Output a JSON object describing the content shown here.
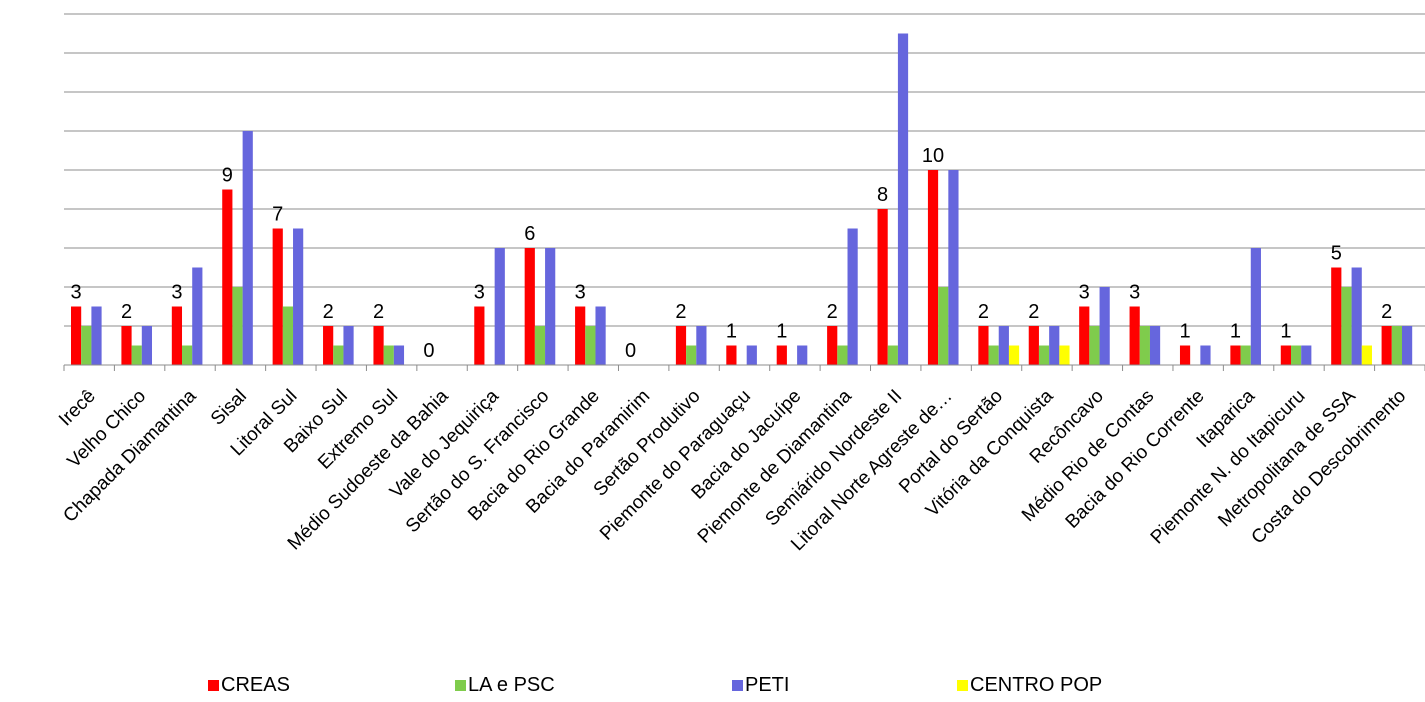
{
  "chart_data": {
    "type": "bar",
    "categories": [
      "Irecê",
      "Velho Chico",
      "Chapada Diamantina",
      "Sisal",
      "Litoral Sul",
      "Baixo Sul",
      "Extremo Sul",
      "Médio Sudoeste da Bahia",
      "Vale do Jequiriça",
      "Sertão do S. Francisco",
      "Bacia do Rio Grande",
      "Bacia do Paramirim",
      "Sertão Produtivo",
      "Piemonte do Paraguaçu",
      "Bacia do Jacuípe",
      "Piemonte de Diamantina",
      "Semiárido Nordeste II",
      "Litoral Norte Agreste de…",
      "Portal do Sertão",
      "Vitória da Conquista",
      "Recôncavo",
      "Médio Rio de Contas",
      "Bacia do Rio Corrente",
      "Itaparica",
      "Piemonte N. do Itapicuru",
      "Metropolitana de SSA",
      "Costa do Descobrimento"
    ],
    "series": [
      {
        "name": "CREAS",
        "color": "#ff0000",
        "values": [
          3,
          2,
          3,
          9,
          7,
          2,
          2,
          0,
          3,
          6,
          3,
          0,
          2,
          1,
          1,
          2,
          8,
          10,
          2,
          2,
          3,
          3,
          1,
          1,
          1,
          5,
          2
        ]
      },
      {
        "name": "LA e PSC",
        "color": "#7fcc4c",
        "values": [
          2,
          1,
          1,
          4,
          3,
          1,
          1,
          0,
          0,
          2,
          2,
          0,
          1,
          0,
          0,
          1,
          1,
          4,
          1,
          1,
          2,
          2,
          0,
          1,
          1,
          4,
          2
        ]
      },
      {
        "name": "PETI",
        "color": "#6666dd",
        "values": [
          3,
          2,
          5,
          12,
          7,
          2,
          1,
          0,
          6,
          6,
          3,
          0,
          2,
          1,
          1,
          7,
          17,
          10,
          2,
          2,
          4,
          2,
          1,
          6,
          1,
          5,
          2
        ]
      },
      {
        "name": "CENTRO POP",
        "color": "#ffff00",
        "values": [
          0,
          0,
          0,
          0,
          0,
          0,
          0,
          0,
          0,
          0,
          0,
          0,
          0,
          0,
          0,
          0,
          0,
          0,
          1,
          1,
          0,
          0,
          0,
          0,
          0,
          1,
          0
        ]
      }
    ],
    "data_labels": [
      "3",
      "2",
      "3",
      "9",
      "7",
      "2",
      "2",
      "0",
      "3",
      "6",
      "3",
      "0",
      "2",
      "1",
      "1",
      "2",
      "8",
      "10",
      "2",
      "2",
      "3",
      "3",
      "1",
      "1",
      "1",
      "5",
      "2"
    ],
    "ylim": [
      0,
      18
    ],
    "grid": true,
    "legend_position": "bottom"
  }
}
